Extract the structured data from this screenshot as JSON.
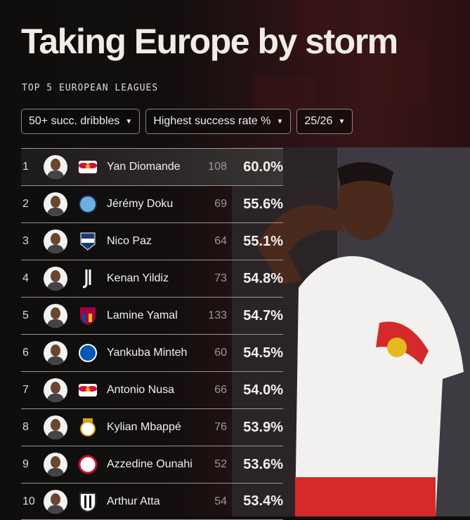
{
  "header": {
    "title": "Taking Europe by storm",
    "subtitle": "TOP 5 EUROPEAN LEAGUES"
  },
  "filters": [
    {
      "label": "50+ succ. dribbles"
    },
    {
      "label": "Highest success rate %"
    },
    {
      "label": "25/26"
    }
  ],
  "rows": [
    {
      "rank": "1",
      "name": "Yan Diomande",
      "club": "rb-leipzig",
      "count": "108",
      "pct": "60.0%"
    },
    {
      "rank": "2",
      "name": "Jérémy Doku",
      "club": "manchester-city",
      "count": "69",
      "pct": "55.6%"
    },
    {
      "rank": "3",
      "name": "Nico Paz",
      "club": "como",
      "count": "64",
      "pct": "55.1%"
    },
    {
      "rank": "4",
      "name": "Kenan Yildiz",
      "club": "juventus",
      "count": "73",
      "pct": "54.8%"
    },
    {
      "rank": "5",
      "name": "Lamine Yamal",
      "club": "barcelona",
      "count": "133",
      "pct": "54.7%"
    },
    {
      "rank": "6",
      "name": "Yankuba Minteh",
      "club": "brighton",
      "count": "60",
      "pct": "54.5%"
    },
    {
      "rank": "7",
      "name": "Antonio Nusa",
      "club": "rb-leipzig",
      "count": "66",
      "pct": "54.0%"
    },
    {
      "rank": "8",
      "name": "Kylian Mbappé",
      "club": "real-madrid",
      "count": "76",
      "pct": "53.9%"
    },
    {
      "rank": "9",
      "name": "Azzedine Ounahi",
      "club": "girona",
      "count": "52",
      "pct": "53.6%"
    },
    {
      "rank": "10",
      "name": "Arthur Atta",
      "club": "udinese",
      "count": "54",
      "pct": "53.4%"
    }
  ],
  "colors": {
    "background": "#0f0d0d",
    "accent_red": "#c8202a",
    "text": "#f1ede6"
  }
}
